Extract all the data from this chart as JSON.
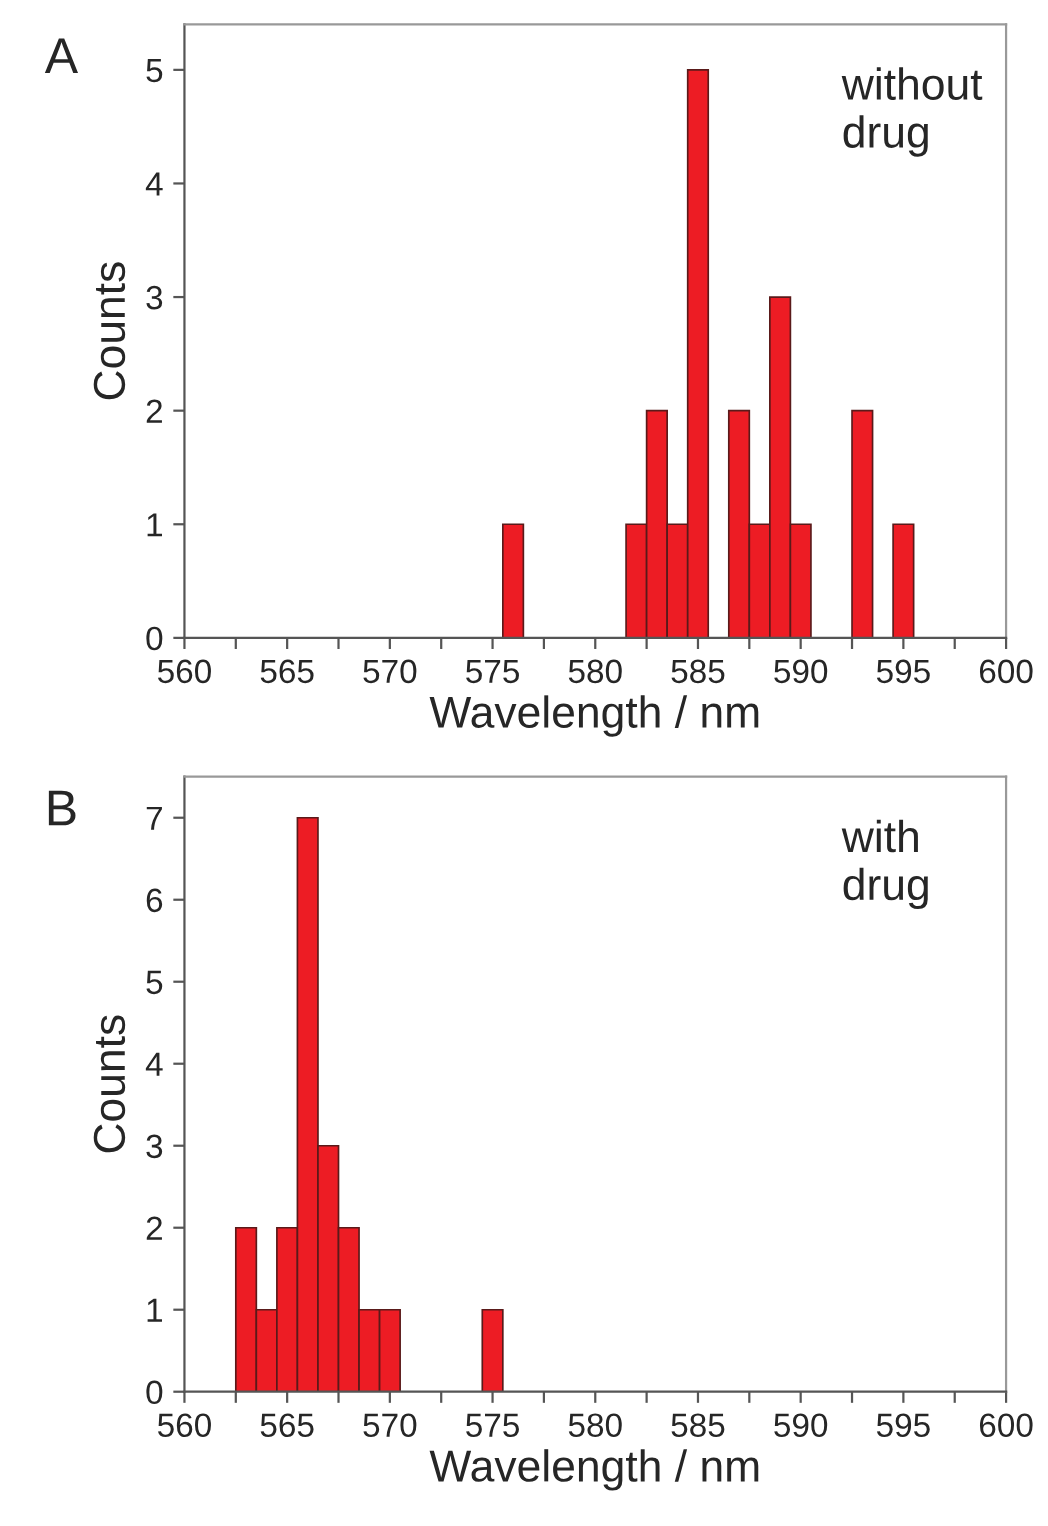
{
  "chart_data": [
    {
      "type": "histogram",
      "xlabel": "Wavelength / nm",
      "ylabel": "Counts",
      "color": "#ed1c24",
      "bins": [
        575.5,
        576.5,
        577.5,
        578.5,
        579.5,
        580.5,
        581.5,
        582.5,
        583.5,
        584.5,
        585.5,
        586.5,
        587.5,
        588.5,
        589.5,
        590.5,
        591.5,
        592.5,
        593.5,
        594.5,
        595.5
      ],
      "values": [
        1,
        0,
        0,
        0,
        0,
        0,
        1,
        2,
        1,
        5,
        0,
        2,
        1,
        3,
        1,
        0,
        0,
        2,
        0,
        1
      ],
      "xlim": [
        560,
        600
      ],
      "xticks": [
        560,
        {
          "value": 562.5,
          "label": null
        },
        565,
        {
          "value": 567.5,
          "label": null
        },
        570,
        {
          "value": 572.5,
          "label": null
        },
        575,
        {
          "value": 577.5,
          "label": null
        },
        580,
        {
          "value": 582.5,
          "label": null
        },
        585,
        {
          "value": 587.5,
          "label": null
        },
        590,
        {
          "value": 592.5,
          "label": null
        },
        595,
        {
          "value": 597.5,
          "label": null
        },
        600
      ],
      "ylim": [
        0,
        5.4
      ],
      "yticks": [
        0,
        1,
        2,
        3,
        4,
        5
      ],
      "annotations": [
        "A",
        "without\ndrug"
      ]
    },
    {
      "type": "histogram",
      "xlabel": "Wavelength / nm",
      "ylabel": "Counts",
      "color": "#ed1c24",
      "bins": [
        562.5,
        563.5,
        564.5,
        565.5,
        566.5,
        567.5,
        568.5,
        569.5,
        570.5,
        571.5,
        572.5,
        573.5,
        574.5,
        575.5
      ],
      "values": [
        2,
        1,
        2,
        7,
        3,
        2,
        1,
        1,
        0,
        0,
        0,
        0,
        1
      ],
      "xlim": [
        560,
        600
      ],
      "xticks": [
        560,
        {
          "value": 562.5,
          "label": null
        },
        565,
        {
          "value": 567.5,
          "label": null
        },
        570,
        {
          "value": 572.5,
          "label": null
        },
        575,
        {
          "value": 577.5,
          "label": null
        },
        580,
        {
          "value": 582.5,
          "label": null
        },
        585,
        {
          "value": 587.5,
          "label": null
        },
        590,
        {
          "value": 592.5,
          "label": null
        },
        595,
        {
          "value": 597.5,
          "label": null
        },
        600
      ],
      "ylim": [
        0,
        7.5
      ],
      "yticks": [
        0,
        1,
        2,
        3,
        4,
        5,
        6,
        7
      ],
      "annotations": [
        "B",
        "with\ndrug"
      ]
    }
  ]
}
